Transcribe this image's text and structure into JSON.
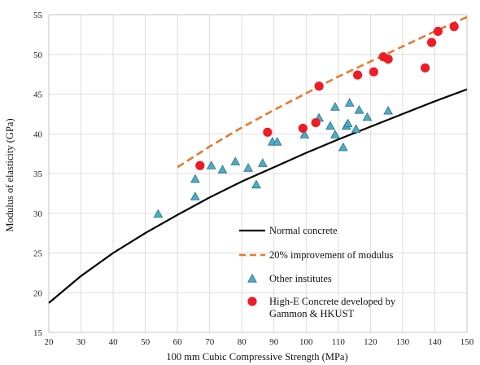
{
  "chart_data": {
    "type": "scatter",
    "xlabel": "100 mm Cubic Compressive Strength (MPa)",
    "ylabel": "Modulus of elasticity (GPa)",
    "xlim": [
      20,
      150
    ],
    "ylim": [
      15,
      55
    ],
    "x_ticks": [
      "20",
      "30",
      "40",
      "50",
      "60",
      "70",
      "80",
      "90",
      "100",
      "110",
      "120",
      "130",
      "140",
      "150"
    ],
    "y_ticks": [
      "15",
      "20",
      "25",
      "30",
      "35",
      "40",
      "45",
      "50",
      "55"
    ],
    "grid": true,
    "legend_position": "bottom-right",
    "series": [
      {
        "name": "Normal concrete",
        "kind": "line",
        "color": "#000000",
        "dash": "solid",
        "points": [
          [
            20,
            18.7
          ],
          [
            30,
            22.1
          ],
          [
            40,
            25.0
          ],
          [
            50,
            27.5
          ],
          [
            60,
            29.8
          ],
          [
            70,
            32.0
          ],
          [
            80,
            34.0
          ],
          [
            90,
            35.8
          ],
          [
            100,
            37.6
          ],
          [
            110,
            39.3
          ],
          [
            120,
            40.9
          ],
          [
            130,
            42.5
          ],
          [
            140,
            44.1
          ],
          [
            150,
            45.6
          ]
        ]
      },
      {
        "name": "20% improvement of modulus",
        "kind": "line",
        "color": "#e8792b",
        "dash": "dashed",
        "points": [
          [
            60,
            35.8
          ],
          [
            70,
            38.4
          ],
          [
            80,
            40.8
          ],
          [
            90,
            43.0
          ],
          [
            100,
            45.1
          ],
          [
            110,
            47.2
          ],
          [
            120,
            49.1
          ],
          [
            130,
            51.0
          ],
          [
            140,
            52.9
          ],
          [
            150,
            54.7
          ]
        ]
      },
      {
        "name": "Other institutes",
        "kind": "triangle",
        "color": "#4bacc6",
        "points": [
          [
            54,
            29.9
          ],
          [
            65.5,
            32.1
          ],
          [
            65.5,
            34.3
          ],
          [
            70.5,
            36.0
          ],
          [
            74,
            35.5
          ],
          [
            78,
            36.5
          ],
          [
            82,
            35.7
          ],
          [
            84.5,
            33.6
          ],
          [
            86.5,
            36.3
          ],
          [
            89.5,
            39.0
          ],
          [
            91,
            39.0
          ],
          [
            99.5,
            39.9
          ],
          [
            104,
            42.0
          ],
          [
            107.5,
            41.0
          ],
          [
            109,
            43.4
          ],
          [
            109,
            39.9
          ],
          [
            111.5,
            38.3
          ],
          [
            112.5,
            41.0
          ],
          [
            113,
            41.3
          ],
          [
            113.5,
            43.9
          ],
          [
            115.5,
            40.6
          ],
          [
            116.5,
            43.0
          ],
          [
            119,
            42.1
          ],
          [
            125.5,
            42.9
          ]
        ]
      },
      {
        "name": "High-E Concrete developed by Gammon & HKUST",
        "kind": "circle",
        "color": "#ee1c25",
        "points": [
          [
            67,
            36.0
          ],
          [
            88,
            40.2
          ],
          [
            99,
            40.7
          ],
          [
            103,
            41.4
          ],
          [
            104,
            46.0
          ],
          [
            116,
            47.4
          ],
          [
            121,
            47.8
          ],
          [
            124,
            49.7
          ],
          [
            125.5,
            49.4
          ],
          [
            137,
            48.3
          ],
          [
            139,
            51.5
          ],
          [
            141,
            52.9
          ],
          [
            146,
            53.5
          ]
        ]
      }
    ],
    "legend": [
      {
        "series": 0,
        "lines": [
          "Normal concrete"
        ]
      },
      {
        "series": 1,
        "lines": [
          "20% improvement of modulus"
        ]
      },
      {
        "series": 2,
        "lines": [
          "Other institutes"
        ]
      },
      {
        "series": 3,
        "lines": [
          "High-E Concrete developed by",
          "Gammon & HKUST"
        ]
      }
    ]
  }
}
